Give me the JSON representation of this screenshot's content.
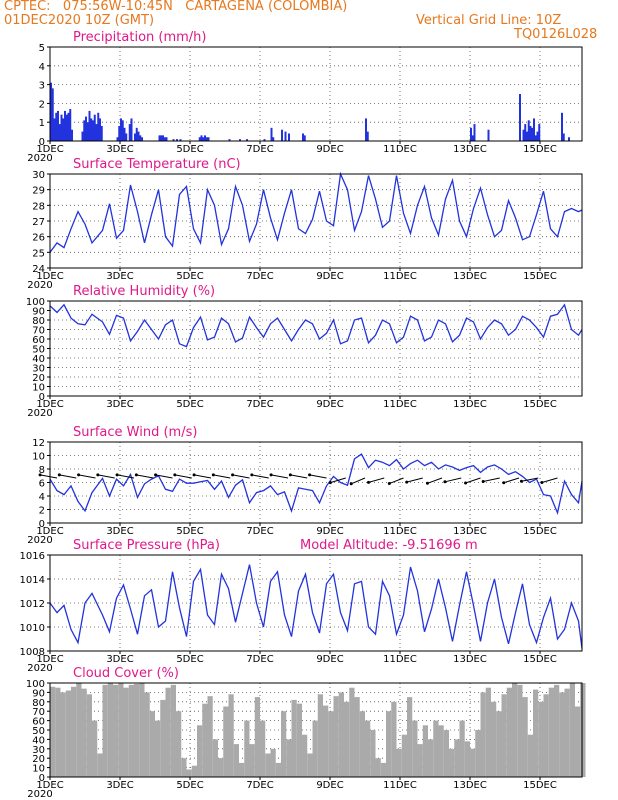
{
  "header": {
    "line1": "CPTEC:   075:56W-10:45N   CARTAGENA (COLOMBIA)",
    "line2": "01DEC2020 10Z (GMT)",
    "grid_note": "Vertical Grid Line: 10Z",
    "code": "TQ0126L028"
  },
  "colors": {
    "header": "#e6781e",
    "panel_title": "#e0188a",
    "series": "#2233dd",
    "cloud": "#aaaaaa"
  },
  "x_ticks": [
    "1DEC",
    "3DEC",
    "5DEC",
    "7DEC",
    "9DEC",
    "11DEC",
    "13DEC",
    "15DEC"
  ],
  "x_tick_days": [
    1,
    3,
    5,
    7,
    9,
    11,
    13,
    15
  ],
  "x_range_days": [
    1,
    16.2
  ],
  "year_label": "2020",
  "chart_data": [
    {
      "type": "bar",
      "title": "Precipitation (mm/h)",
      "ylim": [
        0,
        5
      ],
      "y_ticks": [
        0,
        1,
        2,
        3,
        4,
        5
      ],
      "grid": true,
      "x_day": [
        1.0,
        1.05,
        1.1,
        1.15,
        1.2,
        1.25,
        1.3,
        1.35,
        1.4,
        1.45,
        1.5,
        1.55,
        1.6,
        1.9,
        1.95,
        2.0,
        2.05,
        2.1,
        2.15,
        2.2,
        2.25,
        2.3,
        2.35,
        2.4,
        2.45,
        2.9,
        2.95,
        3.0,
        3.05,
        3.1,
        3.15,
        3.25,
        3.3,
        3.4,
        3.45,
        3.5,
        3.55,
        3.6,
        4.1,
        4.15,
        4.2,
        4.25,
        4.3,
        4.5,
        4.6,
        4.7,
        5.25,
        5.3,
        5.35,
        5.4,
        5.45,
        5.5,
        6.1,
        6.4,
        6.6,
        7.1,
        7.3,
        7.35,
        7.6,
        7.7,
        7.8,
        8.2,
        8.25,
        10.0,
        10.05,
        13.0,
        13.05,
        13.1,
        13.5,
        14.4,
        14.5,
        14.55,
        14.6,
        14.65,
        14.7,
        14.75,
        14.8,
        14.85,
        14.9,
        14.95,
        15.6,
        15.65,
        15.8
      ],
      "values": [
        3.1,
        2.8,
        1.2,
        1.5,
        1.6,
        0.9,
        1.4,
        1.2,
        1.6,
        1.4,
        1.5,
        1.7,
        0.6,
        0.5,
        1.1,
        1.3,
        1.0,
        1.6,
        1.2,
        1.1,
        1.4,
        0.9,
        1.5,
        1.2,
        0.8,
        0.2,
        0.8,
        1.2,
        1.1,
        0.7,
        0.4,
        0.9,
        1.2,
        0.4,
        0.7,
        0.5,
        0.3,
        0.2,
        0.3,
        0.3,
        0.3,
        0.2,
        0.2,
        0.1,
        0.1,
        0.1,
        0.2,
        0.3,
        0.2,
        0.3,
        0.2,
        0.2,
        0.1,
        0.1,
        0.1,
        0.1,
        0.7,
        0.2,
        0.6,
        0.5,
        0.4,
        0.4,
        0.3,
        1.2,
        0.5,
        0.7,
        0.3,
        0.9,
        0.6,
        2.5,
        0.6,
        0.9,
        0.5,
        1.1,
        0.8,
        0.7,
        1.2,
        0.3,
        0.5,
        0.9,
        1.5,
        0.4,
        0.2
      ]
    },
    {
      "type": "line",
      "title": "Surface Temperature (nC)",
      "ylim": [
        24,
        30
      ],
      "y_ticks": [
        24,
        25,
        26,
        27,
        28,
        29,
        30
      ],
      "grid": true,
      "series": [
        {
          "x_day": [
            1.0,
            1.2,
            1.4,
            1.6,
            1.8,
            2.0,
            2.2,
            2.5,
            2.7,
            2.9,
            3.1,
            3.3,
            3.5,
            3.7,
            3.9,
            4.1,
            4.3,
            4.5,
            4.7,
            4.9,
            5.1,
            5.3,
            5.5,
            5.7,
            5.9,
            6.1,
            6.3,
            6.5,
            6.7,
            6.9,
            7.1,
            7.3,
            7.5,
            7.7,
            7.9,
            8.1,
            8.3,
            8.5,
            8.7,
            8.9,
            9.1,
            9.3,
            9.5,
            9.7,
            9.9,
            10.1,
            10.3,
            10.5,
            10.7,
            10.9,
            11.1,
            11.3,
            11.5,
            11.7,
            11.9,
            12.1,
            12.3,
            12.5,
            12.7,
            12.9,
            13.1,
            13.3,
            13.5,
            13.7,
            13.9,
            14.1,
            14.3,
            14.5,
            14.7,
            14.9,
            15.1,
            15.3,
            15.5,
            15.7,
            15.9,
            16.1,
            16.2
          ],
          "values": [
            25.0,
            25.6,
            25.3,
            26.5,
            27.6,
            26.8,
            25.6,
            26.4,
            28.1,
            25.9,
            26.4,
            29.3,
            27.6,
            25.6,
            27.4,
            29.0,
            26.0,
            25.4,
            28.7,
            29.2,
            26.5,
            25.6,
            29.0,
            28.0,
            25.5,
            26.5,
            29.2,
            28.0,
            25.7,
            26.8,
            29.0,
            27.2,
            25.8,
            27.5,
            29.0,
            26.5,
            26.2,
            27.1,
            28.9,
            27.0,
            26.7,
            30.1,
            29.0,
            26.4,
            27.6,
            29.9,
            28.4,
            26.6,
            27.0,
            29.9,
            27.5,
            26.2,
            28.0,
            29.2,
            27.2,
            26.1,
            28.4,
            29.6,
            27.0,
            26.0,
            27.8,
            29.1,
            27.4,
            26.0,
            26.4,
            28.3,
            27.2,
            25.8,
            26.0,
            27.4,
            28.9,
            26.5,
            26.0,
            27.6,
            27.8,
            27.6,
            27.7
          ]
        }
      ]
    },
    {
      "type": "line",
      "title": "Relative Humidity (%)",
      "ylim": [
        0,
        100
      ],
      "y_ticks": [
        0,
        10,
        20,
        30,
        40,
        50,
        60,
        70,
        80,
        90,
        100
      ],
      "grid": true,
      "series": [
        {
          "x_day": [
            1.0,
            1.2,
            1.4,
            1.6,
            1.8,
            2.0,
            2.2,
            2.5,
            2.7,
            2.9,
            3.1,
            3.3,
            3.5,
            3.7,
            3.9,
            4.1,
            4.3,
            4.5,
            4.7,
            4.9,
            5.1,
            5.3,
            5.5,
            5.7,
            5.9,
            6.1,
            6.3,
            6.5,
            6.7,
            6.9,
            7.1,
            7.3,
            7.5,
            7.7,
            7.9,
            8.1,
            8.3,
            8.5,
            8.7,
            8.9,
            9.1,
            9.3,
            9.5,
            9.7,
            9.9,
            10.1,
            10.3,
            10.5,
            10.7,
            10.9,
            11.1,
            11.3,
            11.5,
            11.7,
            11.9,
            12.1,
            12.3,
            12.5,
            12.7,
            12.9,
            13.1,
            13.3,
            13.5,
            13.7,
            13.9,
            14.1,
            14.3,
            14.5,
            14.7,
            14.9,
            15.1,
            15.3,
            15.5,
            15.7,
            15.9,
            16.1,
            16.2
          ],
          "values": [
            95,
            88,
            96,
            82,
            76,
            75,
            86,
            78,
            65,
            85,
            82,
            58,
            68,
            80,
            70,
            60,
            75,
            80,
            55,
            52,
            72,
            83,
            59,
            62,
            82,
            76,
            57,
            61,
            83,
            72,
            62,
            76,
            82,
            70,
            58,
            70,
            80,
            76,
            60,
            66,
            80,
            55,
            58,
            80,
            82,
            56,
            64,
            80,
            76,
            56,
            62,
            84,
            80,
            58,
            62,
            80,
            76,
            57,
            64,
            82,
            78,
            60,
            72,
            80,
            76,
            64,
            70,
            84,
            80,
            72,
            62,
            84,
            86,
            96,
            70,
            64,
            70
          ]
        }
      ]
    },
    {
      "type": "line",
      "title": "Surface Wind (m/s)",
      "ylim": [
        0,
        12
      ],
      "y_ticks": [
        0,
        2,
        4,
        6,
        8,
        10,
        12
      ],
      "grid": true,
      "series": [
        {
          "x_day": [
            1.0,
            1.2,
            1.4,
            1.6,
            1.8,
            2.0,
            2.2,
            2.5,
            2.7,
            2.9,
            3.1,
            3.3,
            3.5,
            3.7,
            3.9,
            4.1,
            4.3,
            4.5,
            4.7,
            4.9,
            5.1,
            5.3,
            5.5,
            5.7,
            5.9,
            6.1,
            6.3,
            6.5,
            6.7,
            6.9,
            7.1,
            7.3,
            7.5,
            7.7,
            7.9,
            8.1,
            8.3,
            8.5,
            8.7,
            8.9,
            9.1,
            9.3,
            9.5,
            9.7,
            9.9,
            10.1,
            10.3,
            10.5,
            10.7,
            10.9,
            11.1,
            11.3,
            11.5,
            11.7,
            11.9,
            12.1,
            12.3,
            12.5,
            12.7,
            12.9,
            13.1,
            13.3,
            13.5,
            13.7,
            13.9,
            14.1,
            14.3,
            14.5,
            14.7,
            14.9,
            15.1,
            15.3,
            15.5,
            15.7,
            15.9,
            16.1,
            16.2
          ],
          "values": [
            6.5,
            4.8,
            4.2,
            5.5,
            3.2,
            1.8,
            4.5,
            6.6,
            4.0,
            6.5,
            5.5,
            7.2,
            3.8,
            5.8,
            6.5,
            7.0,
            5.0,
            4.7,
            6.5,
            5.9,
            5.9,
            6.1,
            6.3,
            5.0,
            6.2,
            3.8,
            5.6,
            6.4,
            3.0,
            4.5,
            4.8,
            5.5,
            4.2,
            4.6,
            1.8,
            5.2,
            5.0,
            4.8,
            3.0,
            5.5,
            6.9,
            6.0,
            5.6,
            9.5,
            10.2,
            8.2,
            9.3,
            9.0,
            8.5,
            9.4,
            8.0,
            8.8,
            9.3,
            8.5,
            9.0,
            8.0,
            8.6,
            8.3,
            7.8,
            8.2,
            8.5,
            7.5,
            8.3,
            8.6,
            8.0,
            7.2,
            7.6,
            6.9,
            6.0,
            6.5,
            4.2,
            4.0,
            1.5,
            6.2,
            4.2,
            3.0,
            6.2
          ]
        }
      ]
    },
    {
      "type": "line",
      "title": "Surface Pressure (hPa)",
      "annotation": "Model Altitude: -9.51696 m",
      "ylim": [
        1008,
        1016
      ],
      "y_ticks": [
        1008,
        1010,
        1012,
        1014,
        1016
      ],
      "grid": true,
      "series": [
        {
          "x_day": [
            1.0,
            1.2,
            1.4,
            1.6,
            1.8,
            2.0,
            2.2,
            2.5,
            2.7,
            2.9,
            3.1,
            3.3,
            3.5,
            3.7,
            3.9,
            4.1,
            4.3,
            4.5,
            4.7,
            4.9,
            5.1,
            5.3,
            5.5,
            5.7,
            5.9,
            6.1,
            6.3,
            6.5,
            6.7,
            6.9,
            7.1,
            7.3,
            7.5,
            7.7,
            7.9,
            8.1,
            8.3,
            8.5,
            8.7,
            8.9,
            9.1,
            9.3,
            9.5,
            9.7,
            9.9,
            10.1,
            10.3,
            10.5,
            10.7,
            10.9,
            11.1,
            11.3,
            11.5,
            11.7,
            11.9,
            12.1,
            12.3,
            12.5,
            12.7,
            12.9,
            13.1,
            13.3,
            13.5,
            13.7,
            13.9,
            14.1,
            14.3,
            14.5,
            14.7,
            14.9,
            15.1,
            15.3,
            15.5,
            15.7,
            15.9,
            16.1,
            16.2
          ],
          "values": [
            1012.0,
            1011.2,
            1011.8,
            1009.8,
            1008.7,
            1012.0,
            1012.8,
            1011.0,
            1009.6,
            1012.4,
            1013.5,
            1011.5,
            1009.4,
            1012.6,
            1013.1,
            1010.0,
            1010.5,
            1014.6,
            1011.6,
            1009.2,
            1013.8,
            1014.8,
            1011.0,
            1010.2,
            1014.4,
            1013.2,
            1010.4,
            1012.8,
            1015.2,
            1012.0,
            1010.0,
            1013.8,
            1014.6,
            1011.0,
            1009.2,
            1013.0,
            1014.4,
            1011.2,
            1009.5,
            1013.6,
            1014.4,
            1011.2,
            1009.7,
            1013.6,
            1013.8,
            1010.0,
            1009.4,
            1013.8,
            1012.6,
            1009.4,
            1011.0,
            1015.0,
            1013.0,
            1009.6,
            1011.5,
            1014.0,
            1011.6,
            1008.8,
            1011.8,
            1014.6,
            1011.8,
            1008.8,
            1012.0,
            1014.0,
            1010.8,
            1008.6,
            1011.2,
            1013.6,
            1010.2,
            1008.7,
            1010.8,
            1012.4,
            1009.0,
            1009.8,
            1012.0,
            1010.5,
            1008.2
          ]
        }
      ]
    },
    {
      "type": "bar",
      "title": "Cloud Cover (%)",
      "ylim": [
        0,
        100
      ],
      "y_ticks": [
        0,
        10,
        20,
        30,
        40,
        50,
        60,
        70,
        80,
        90,
        100
      ],
      "grid": true,
      "x_day": [
        1.0,
        1.15,
        1.3,
        1.45,
        1.6,
        1.75,
        1.9,
        2.05,
        2.2,
        2.35,
        2.5,
        2.65,
        2.8,
        2.95,
        3.1,
        3.25,
        3.4,
        3.55,
        3.7,
        3.85,
        4.0,
        4.15,
        4.3,
        4.45,
        4.6,
        4.75,
        4.9,
        5.05,
        5.2,
        5.35,
        5.5,
        5.65,
        5.8,
        5.95,
        6.1,
        6.25,
        6.4,
        6.55,
        6.7,
        6.85,
        7.0,
        7.15,
        7.3,
        7.45,
        7.6,
        7.75,
        7.9,
        8.05,
        8.2,
        8.35,
        8.5,
        8.65,
        8.8,
        8.95,
        9.1,
        9.25,
        9.4,
        9.55,
        9.7,
        9.85,
        10.0,
        10.15,
        10.3,
        10.45,
        10.6,
        10.75,
        10.9,
        11.05,
        11.2,
        11.35,
        11.5,
        11.65,
        11.8,
        11.95,
        12.1,
        12.25,
        12.4,
        12.55,
        12.7,
        12.85,
        13.0,
        13.15,
        13.3,
        13.45,
        13.6,
        13.75,
        13.9,
        14.05,
        14.2,
        14.35,
        14.5,
        14.65,
        14.8,
        14.95,
        15.1,
        15.25,
        15.4,
        15.55,
        15.7,
        15.85,
        16.0,
        16.15
      ],
      "values": [
        96,
        95,
        90,
        92,
        96,
        100,
        94,
        88,
        60,
        25,
        98,
        100,
        98,
        100,
        95,
        98,
        99,
        100,
        90,
        70,
        60,
        82,
        95,
        98,
        70,
        20,
        8,
        12,
        55,
        78,
        86,
        40,
        20,
        75,
        88,
        35,
        15,
        60,
        35,
        85,
        60,
        25,
        30,
        15,
        70,
        40,
        82,
        78,
        45,
        25,
        60,
        88,
        76,
        70,
        86,
        90,
        80,
        95,
        85,
        70,
        60,
        50,
        20,
        15,
        70,
        80,
        30,
        45,
        85,
        60,
        35,
        55,
        40,
        60,
        55,
        50,
        30,
        40,
        60,
        38,
        30,
        50,
        90,
        95,
        80,
        70,
        88,
        95,
        100,
        98,
        85,
        45,
        93,
        80,
        88,
        95,
        98,
        90,
        94,
        100,
        75,
        100
      ]
    }
  ]
}
